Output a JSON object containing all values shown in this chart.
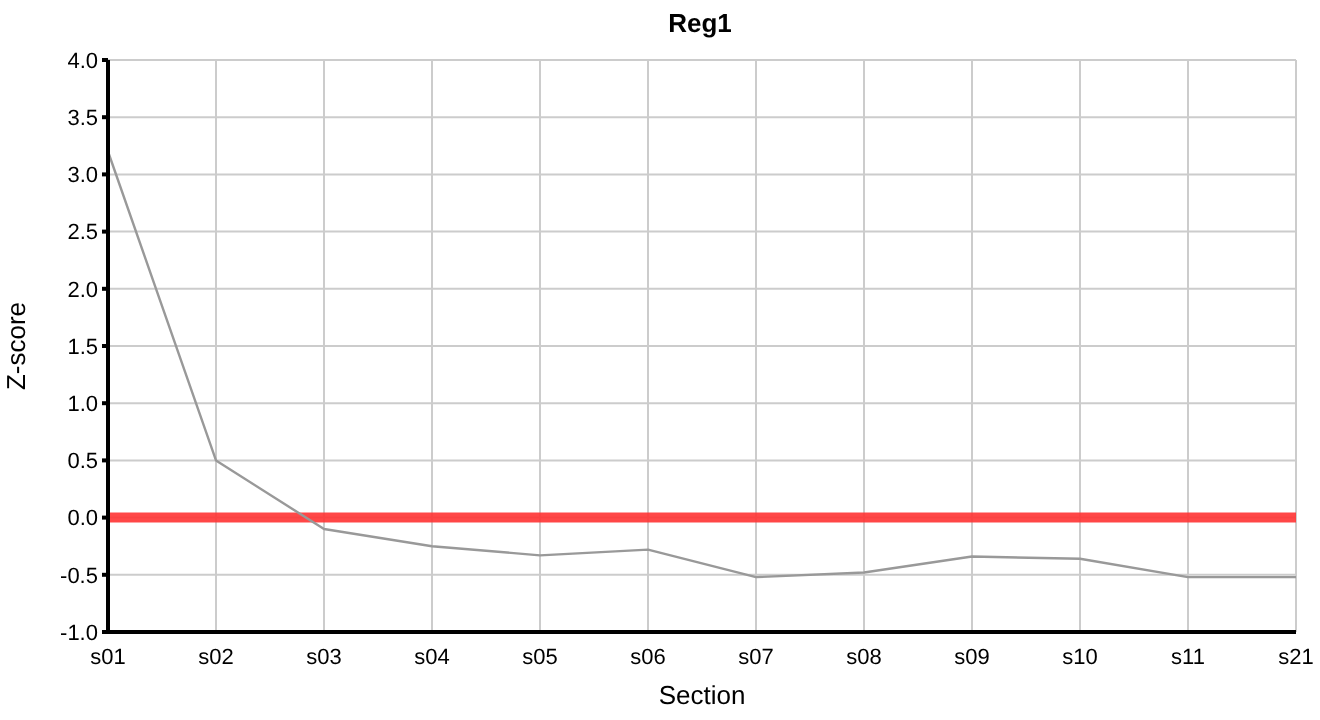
{
  "chart_data": {
    "type": "line",
    "title": "Reg1",
    "xlabel": "Section",
    "ylabel": "Z-score",
    "categories": [
      "s01",
      "s02",
      "s03",
      "s04",
      "s05",
      "s06",
      "s07",
      "s08",
      "s09",
      "s10",
      "s11",
      "s21"
    ],
    "series": [
      {
        "color": "#999999",
        "values": [
          3.2,
          0.5,
          -0.1,
          -0.25,
          -0.33,
          -0.28,
          -0.52,
          -0.48,
          -0.34,
          -0.36,
          -0.52,
          -0.52
        ]
      }
    ],
    "ylim": [
      -1.0,
      4.0
    ],
    "yticks": [
      {
        "value": -1,
        "label": "-1.0"
      },
      {
        "value": -0.5,
        "label": "-0.5"
      },
      {
        "value": 0,
        "label": "0.0"
      },
      {
        "value": 0.5,
        "label": "0.5"
      },
      {
        "value": 1,
        "label": "1.0"
      },
      {
        "value": 1.5,
        "label": "1.5"
      },
      {
        "value": 2,
        "label": "2.0"
      },
      {
        "value": 2.5,
        "label": "2.5"
      },
      {
        "value": 3,
        "label": "3.0"
      },
      {
        "value": 3.5,
        "label": "3.5"
      },
      {
        "value": 4,
        "label": "4.0"
      }
    ],
    "ref_lines": [
      {
        "axis": "y",
        "value": 0,
        "color": "#ff3333"
      }
    ],
    "grid": true,
    "marker": "none",
    "line_style": "solid"
  }
}
